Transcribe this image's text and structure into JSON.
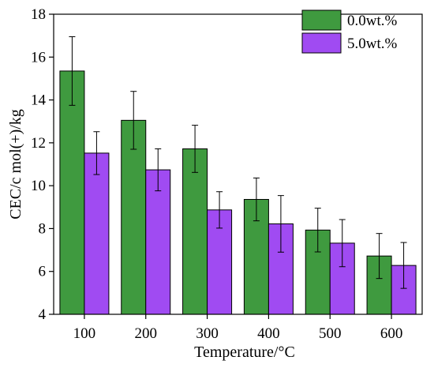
{
  "chart_data": {
    "type": "bar",
    "xlabel": "Temperature/°C",
    "ylabel": "CEC/c mol(+)/kg",
    "ylim": [
      4,
      18
    ],
    "yticks": [
      4,
      6,
      8,
      10,
      12,
      14,
      16,
      18
    ],
    "categories": [
      "100",
      "200",
      "300",
      "400",
      "500",
      "600"
    ],
    "legend_position": "top-right",
    "series": [
      {
        "name": "0.0wt.%",
        "color": "#3f9a3f",
        "values": [
          15.35,
          13.05,
          11.72,
          9.36,
          7.93,
          6.72
        ],
        "errors": [
          1.6,
          1.35,
          1.1,
          1.0,
          1.02,
          1.05
        ]
      },
      {
        "name": "5.0wt.%",
        "color": "#a04bf2",
        "values": [
          11.52,
          10.74,
          8.87,
          8.22,
          7.32,
          6.28
        ],
        "errors": [
          1.0,
          0.98,
          0.85,
          1.32,
          1.1,
          1.07
        ]
      }
    ]
  }
}
